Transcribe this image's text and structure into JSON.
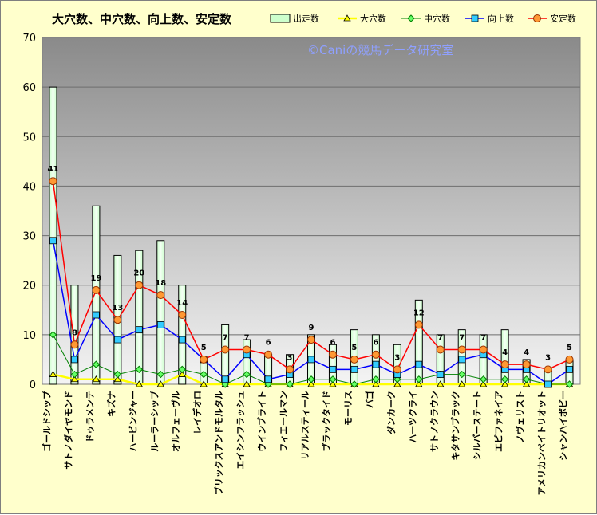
{
  "chart_data": {
    "type": "bar",
    "title": "大穴数、中穴数、向上数、安定数",
    "watermark": "©Caniの競馬データ研究室",
    "ylim": [
      0,
      70
    ],
    "yticks": [
      0,
      10,
      20,
      30,
      40,
      50,
      60,
      70
    ],
    "grid": true,
    "legend_position": "top-right",
    "categories": [
      "ゴールドシップ",
      "サトノダイヤモンド",
      "ドゥラメンテ",
      "キズナ",
      "ハービンジャー",
      "ルーラーシップ",
      "オルフェーヴル",
      "レイデオロ",
      "ブリックスアンドモルタル",
      "エイシンフラッシュ",
      "ウインブライト",
      "フィエールマン",
      "リアルスティール",
      "ブラックタイド",
      "モーリス",
      "バゴ",
      "ダンカーク",
      "ハーツクライ",
      "サトノクラウン",
      "キタサンブラック",
      "シルバーステート",
      "エピファネイア",
      "ノヴェリスト",
      "アメリカンペイトリオット",
      "シャンハイボビー"
    ],
    "series": [
      {
        "name": "出走数",
        "type": "bar",
        "color": "#ccffcc",
        "values": [
          60,
          20,
          36,
          26,
          27,
          29,
          20,
          5,
          12,
          9,
          6,
          6,
          10,
          8,
          11,
          10,
          8,
          17,
          10,
          11,
          10,
          11,
          5,
          3,
          5
        ]
      },
      {
        "name": "大穴数",
        "type": "line",
        "color": "#ffff00",
        "values": [
          2,
          1,
          1,
          1,
          0,
          0,
          2,
          0,
          0,
          0,
          0,
          0,
          0,
          0,
          0,
          0,
          0,
          0,
          0,
          0,
          0,
          0,
          0,
          0,
          0
        ]
      },
      {
        "name": "中穴数",
        "type": "line",
        "color": "#008000",
        "values": [
          10,
          2,
          4,
          2,
          3,
          2,
          3,
          2,
          0,
          2,
          0,
          0,
          1,
          1,
          0,
          1,
          1,
          1,
          2,
          2,
          1,
          1,
          1,
          0,
          0
        ]
      },
      {
        "name": "向上数",
        "type": "line",
        "color": "#0000ff",
        "values": [
          29,
          5,
          14,
          9,
          11,
          12,
          9,
          5,
          1,
          6,
          1,
          2,
          5,
          3,
          3,
          4,
          2,
          4,
          2,
          5,
          6,
          3,
          3,
          0,
          3
        ]
      },
      {
        "name": "安定数",
        "type": "line",
        "color": "#ff0000",
        "values": [
          41,
          8,
          19,
          13,
          20,
          18,
          14,
          5,
          7,
          7,
          6,
          3,
          9,
          6,
          5,
          6,
          3,
          12,
          7,
          7,
          7,
          4,
          4,
          3,
          5
        ]
      }
    ]
  }
}
